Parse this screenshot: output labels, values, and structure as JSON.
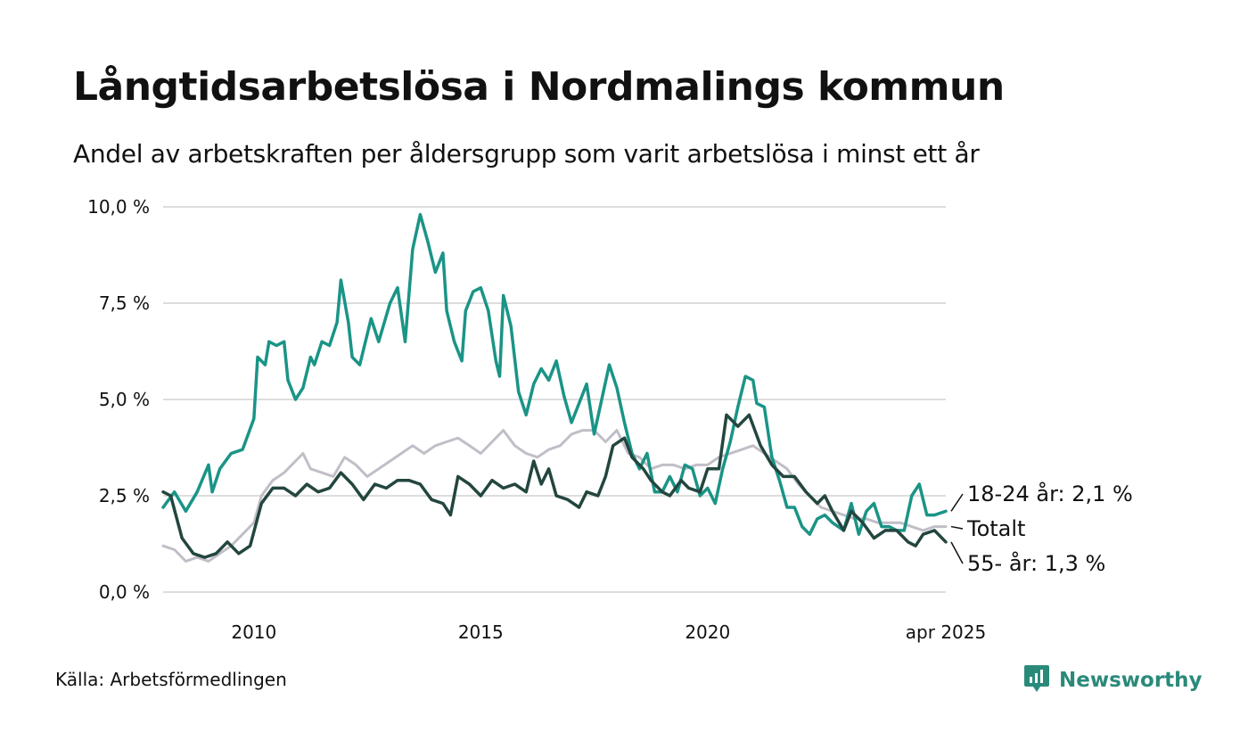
{
  "title": "Långtidsarbetslösa i Nordmalings kommun",
  "subtitle": "Andel av arbetskraften per åldersgrupp som varit arbetslösa i minst ett år",
  "source": "Källa: Arbetsförmedlingen",
  "brand": {
    "name": "Newsworthy",
    "icon": "newsworthy-logo-icon",
    "color": "#2a8a7a"
  },
  "chart_data": {
    "type": "line",
    "title": "Långtidsarbetslösa i Nordmalings kommun",
    "ylim": [
      0,
      10
    ],
    "y_ticks": [
      "10,0 %",
      "7,5 %",
      "5,0 %",
      "2,5 %",
      "0,0 %"
    ],
    "y_tick_values": [
      10,
      7.5,
      5,
      2.5,
      0
    ],
    "x_range": [
      "2008-01",
      "2025-04"
    ],
    "x_ticks": [
      "2010",
      "2015",
      "2020",
      "apr 2025"
    ],
    "x_tick_dates": [
      "2010-01",
      "2015-01",
      "2020-01",
      "2025-04"
    ],
    "grid": "horizontal",
    "legend": "line-end labels",
    "series": [
      {
        "name": "Totalt",
        "label": "Totalt",
        "color": "#c2bec8",
        "points": [
          [
            "2008-01",
            1.2
          ],
          [
            "2008-04",
            1.1
          ],
          [
            "2008-07",
            0.8
          ],
          [
            "2008-10",
            0.9
          ],
          [
            "2009-01",
            0.8
          ],
          [
            "2009-04",
            1.0
          ],
          [
            "2009-07",
            1.2
          ],
          [
            "2009-10",
            1.5
          ],
          [
            "2010-01",
            1.8
          ],
          [
            "2010-03",
            2.5
          ],
          [
            "2010-06",
            2.9
          ],
          [
            "2010-09",
            3.1
          ],
          [
            "2010-12",
            3.4
          ],
          [
            "2011-02",
            3.6
          ],
          [
            "2011-04",
            3.2
          ],
          [
            "2011-07",
            3.1
          ],
          [
            "2011-10",
            3.0
          ],
          [
            "2012-01",
            3.5
          ],
          [
            "2012-04",
            3.3
          ],
          [
            "2012-07",
            3.0
          ],
          [
            "2012-10",
            3.2
          ],
          [
            "2013-01",
            3.4
          ],
          [
            "2013-04",
            3.6
          ],
          [
            "2013-07",
            3.8
          ],
          [
            "2013-10",
            3.6
          ],
          [
            "2014-01",
            3.8
          ],
          [
            "2014-04",
            3.9
          ],
          [
            "2014-07",
            4.0
          ],
          [
            "2014-10",
            3.8
          ],
          [
            "2015-01",
            3.6
          ],
          [
            "2015-04",
            3.9
          ],
          [
            "2015-07",
            4.2
          ],
          [
            "2015-10",
            3.8
          ],
          [
            "2016-01",
            3.6
          ],
          [
            "2016-04",
            3.5
          ],
          [
            "2016-07",
            3.7
          ],
          [
            "2016-10",
            3.8
          ],
          [
            "2017-01",
            4.1
          ],
          [
            "2017-04",
            4.2
          ],
          [
            "2017-07",
            4.2
          ],
          [
            "2017-10",
            3.9
          ],
          [
            "2018-01",
            4.2
          ],
          [
            "2018-04",
            3.6
          ],
          [
            "2018-07",
            3.5
          ],
          [
            "2018-10",
            3.2
          ],
          [
            "2019-01",
            3.3
          ],
          [
            "2019-04",
            3.3
          ],
          [
            "2019-07",
            3.2
          ],
          [
            "2019-10",
            3.3
          ],
          [
            "2020-01",
            3.3
          ],
          [
            "2020-04",
            3.5
          ],
          [
            "2020-07",
            3.6
          ],
          [
            "2020-10",
            3.7
          ],
          [
            "2021-01",
            3.8
          ],
          [
            "2021-04",
            3.6
          ],
          [
            "2021-07",
            3.4
          ],
          [
            "2021-10",
            3.2
          ],
          [
            "2022-01",
            2.8
          ],
          [
            "2022-04",
            2.5
          ],
          [
            "2022-07",
            2.2
          ],
          [
            "2022-10",
            2.1
          ],
          [
            "2023-01",
            2.0
          ],
          [
            "2023-04",
            1.9
          ],
          [
            "2023-07",
            1.9
          ],
          [
            "2023-10",
            1.8
          ],
          [
            "2024-01",
            1.8
          ],
          [
            "2024-04",
            1.8
          ],
          [
            "2024-07",
            1.7
          ],
          [
            "2024-10",
            1.6
          ],
          [
            "2025-01",
            1.7
          ],
          [
            "2025-04",
            1.7
          ]
        ]
      },
      {
        "name": "18-24 år",
        "label": "18-24 år: 2,1 %",
        "color": "#1a9486",
        "points": [
          [
            "2008-01",
            2.2
          ],
          [
            "2008-04",
            2.6
          ],
          [
            "2008-07",
            2.1
          ],
          [
            "2008-10",
            2.6
          ],
          [
            "2009-01",
            3.3
          ],
          [
            "2009-02",
            2.6
          ],
          [
            "2009-04",
            3.2
          ],
          [
            "2009-07",
            3.6
          ],
          [
            "2009-10",
            3.7
          ],
          [
            "2010-01",
            4.5
          ],
          [
            "2010-02",
            6.1
          ],
          [
            "2010-04",
            5.9
          ],
          [
            "2010-05",
            6.5
          ],
          [
            "2010-07",
            6.4
          ],
          [
            "2010-09",
            6.5
          ],
          [
            "2010-10",
            5.5
          ],
          [
            "2010-12",
            5.0
          ],
          [
            "2011-02",
            5.3
          ],
          [
            "2011-04",
            6.1
          ],
          [
            "2011-05",
            5.9
          ],
          [
            "2011-07",
            6.5
          ],
          [
            "2011-09",
            6.4
          ],
          [
            "2011-11",
            7.0
          ],
          [
            "2011-12",
            8.1
          ],
          [
            "2012-02",
            7.0
          ],
          [
            "2012-03",
            6.1
          ],
          [
            "2012-05",
            5.9
          ],
          [
            "2012-08",
            7.1
          ],
          [
            "2012-10",
            6.5
          ],
          [
            "2013-01",
            7.5
          ],
          [
            "2013-03",
            7.9
          ],
          [
            "2013-05",
            6.5
          ],
          [
            "2013-07",
            8.9
          ],
          [
            "2013-09",
            9.8
          ],
          [
            "2013-11",
            9.1
          ],
          [
            "2014-01",
            8.3
          ],
          [
            "2014-03",
            8.8
          ],
          [
            "2014-04",
            7.3
          ],
          [
            "2014-06",
            6.5
          ],
          [
            "2014-08",
            6.0
          ],
          [
            "2014-09",
            7.3
          ],
          [
            "2014-11",
            7.8
          ],
          [
            "2015-01",
            7.9
          ],
          [
            "2015-03",
            7.3
          ],
          [
            "2015-05",
            6.0
          ],
          [
            "2015-06",
            5.6
          ],
          [
            "2015-07",
            7.7
          ],
          [
            "2015-09",
            6.9
          ],
          [
            "2015-11",
            5.2
          ],
          [
            "2016-01",
            4.6
          ],
          [
            "2016-03",
            5.4
          ],
          [
            "2016-05",
            5.8
          ],
          [
            "2016-07",
            5.5
          ],
          [
            "2016-09",
            6.0
          ],
          [
            "2016-11",
            5.1
          ],
          [
            "2017-01",
            4.4
          ],
          [
            "2017-03",
            4.9
          ],
          [
            "2017-05",
            5.4
          ],
          [
            "2017-07",
            4.1
          ],
          [
            "2017-09",
            5.0
          ],
          [
            "2017-11",
            5.9
          ],
          [
            "2018-01",
            5.3
          ],
          [
            "2018-03",
            4.4
          ],
          [
            "2018-05",
            3.6
          ],
          [
            "2018-07",
            3.2
          ],
          [
            "2018-09",
            3.6
          ],
          [
            "2018-11",
            2.6
          ],
          [
            "2019-01",
            2.6
          ],
          [
            "2019-03",
            3.0
          ],
          [
            "2019-05",
            2.6
          ],
          [
            "2019-07",
            3.3
          ],
          [
            "2019-09",
            3.2
          ],
          [
            "2019-11",
            2.5
          ],
          [
            "2020-01",
            2.7
          ],
          [
            "2020-03",
            2.3
          ],
          [
            "2020-05",
            3.2
          ],
          [
            "2020-07",
            3.9
          ],
          [
            "2020-09",
            4.8
          ],
          [
            "2020-11",
            5.6
          ],
          [
            "2021-01",
            5.5
          ],
          [
            "2021-02",
            4.9
          ],
          [
            "2021-04",
            4.8
          ],
          [
            "2021-06",
            3.5
          ],
          [
            "2021-08",
            2.9
          ],
          [
            "2021-10",
            2.2
          ],
          [
            "2021-12",
            2.2
          ],
          [
            "2022-02",
            1.7
          ],
          [
            "2022-04",
            1.5
          ],
          [
            "2022-06",
            1.9
          ],
          [
            "2022-08",
            2.0
          ],
          [
            "2022-10",
            1.8
          ],
          [
            "2023-01",
            1.6
          ],
          [
            "2023-03",
            2.3
          ],
          [
            "2023-05",
            1.5
          ],
          [
            "2023-07",
            2.1
          ],
          [
            "2023-09",
            2.3
          ],
          [
            "2023-11",
            1.7
          ],
          [
            "2024-01",
            1.7
          ],
          [
            "2024-03",
            1.6
          ],
          [
            "2024-05",
            1.6
          ],
          [
            "2024-07",
            2.5
          ],
          [
            "2024-09",
            2.8
          ],
          [
            "2024-11",
            2.0
          ],
          [
            "2025-01",
            2.0
          ],
          [
            "2025-04",
            2.1
          ]
        ]
      },
      {
        "name": "55- år",
        "label": "55- år: 1,3 %",
        "color": "#23463f",
        "points": [
          [
            "2008-01",
            2.6
          ],
          [
            "2008-03",
            2.5
          ],
          [
            "2008-06",
            1.4
          ],
          [
            "2008-09",
            1.0
          ],
          [
            "2008-12",
            0.9
          ],
          [
            "2009-03",
            1.0
          ],
          [
            "2009-06",
            1.3
          ],
          [
            "2009-09",
            1.0
          ],
          [
            "2009-12",
            1.2
          ],
          [
            "2010-03",
            2.3
          ],
          [
            "2010-06",
            2.7
          ],
          [
            "2010-09",
            2.7
          ],
          [
            "2010-12",
            2.5
          ],
          [
            "2011-03",
            2.8
          ],
          [
            "2011-06",
            2.6
          ],
          [
            "2011-09",
            2.7
          ],
          [
            "2011-12",
            3.1
          ],
          [
            "2012-03",
            2.8
          ],
          [
            "2012-06",
            2.4
          ],
          [
            "2012-09",
            2.8
          ],
          [
            "2012-12",
            2.7
          ],
          [
            "2013-03",
            2.9
          ],
          [
            "2013-06",
            2.9
          ],
          [
            "2013-09",
            2.8
          ],
          [
            "2013-12",
            2.4
          ],
          [
            "2014-03",
            2.3
          ],
          [
            "2014-05",
            2.0
          ],
          [
            "2014-07",
            3.0
          ],
          [
            "2014-10",
            2.8
          ],
          [
            "2015-01",
            2.5
          ],
          [
            "2015-04",
            2.9
          ],
          [
            "2015-07",
            2.7
          ],
          [
            "2015-10",
            2.8
          ],
          [
            "2016-01",
            2.6
          ],
          [
            "2016-03",
            3.4
          ],
          [
            "2016-05",
            2.8
          ],
          [
            "2016-07",
            3.2
          ],
          [
            "2016-09",
            2.5
          ],
          [
            "2016-12",
            2.4
          ],
          [
            "2017-03",
            2.2
          ],
          [
            "2017-05",
            2.6
          ],
          [
            "2017-08",
            2.5
          ],
          [
            "2017-10",
            3.0
          ],
          [
            "2017-12",
            3.8
          ],
          [
            "2018-03",
            4.0
          ],
          [
            "2018-05",
            3.5
          ],
          [
            "2018-08",
            3.2
          ],
          [
            "2018-10",
            2.9
          ],
          [
            "2019-01",
            2.6
          ],
          [
            "2019-03",
            2.5
          ],
          [
            "2019-06",
            2.9
          ],
          [
            "2019-08",
            2.7
          ],
          [
            "2019-11",
            2.6
          ],
          [
            "2020-01",
            3.2
          ],
          [
            "2020-04",
            3.2
          ],
          [
            "2020-06",
            4.6
          ],
          [
            "2020-09",
            4.3
          ],
          [
            "2020-12",
            4.6
          ],
          [
            "2021-03",
            3.8
          ],
          [
            "2021-06",
            3.3
          ],
          [
            "2021-09",
            3.0
          ],
          [
            "2021-12",
            3.0
          ],
          [
            "2022-03",
            2.6
          ],
          [
            "2022-06",
            2.3
          ],
          [
            "2022-08",
            2.5
          ],
          [
            "2022-10",
            2.1
          ],
          [
            "2023-01",
            1.6
          ],
          [
            "2023-03",
            2.1
          ],
          [
            "2023-06",
            1.8
          ],
          [
            "2023-09",
            1.4
          ],
          [
            "2023-12",
            1.6
          ],
          [
            "2024-03",
            1.6
          ],
          [
            "2024-06",
            1.3
          ],
          [
            "2024-08",
            1.2
          ],
          [
            "2024-10",
            1.5
          ],
          [
            "2025-01",
            1.6
          ],
          [
            "2025-04",
            1.3
          ]
        ]
      }
    ]
  }
}
